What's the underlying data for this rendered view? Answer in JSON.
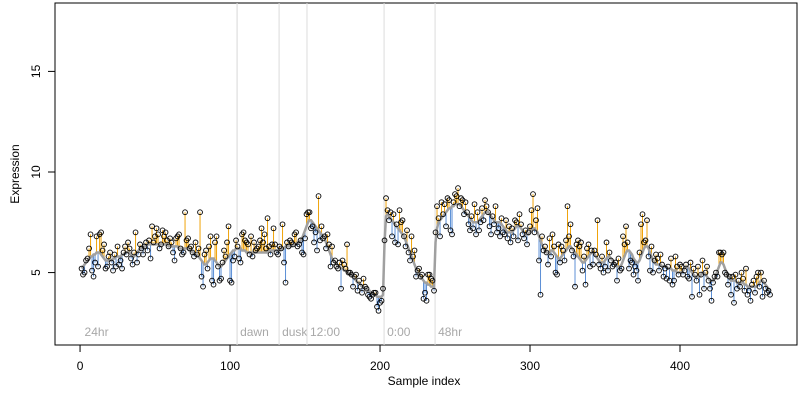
{
  "chart_data": {
    "type": "scatter",
    "xlabel": "Sample index",
    "ylabel": "Expression",
    "xlim": [
      -16.7,
      478
    ],
    "ylim": [
      1.4,
      18.4
    ],
    "xticks": [
      0,
      100,
      200,
      300,
      400
    ],
    "yticks": [
      5,
      10,
      15
    ],
    "colors": {
      "point": "#000000",
      "fit": "#a0a0a0",
      "above": "#f0a30a",
      "below": "#5b8fd6",
      "marker": "#dcdcdc"
    },
    "markers": [
      {
        "x": 1,
        "line": 104.7,
        "label": "24hr"
      },
      {
        "x": 104.7,
        "line": 104.7,
        "label": "dawn"
      },
      {
        "x": 132.7,
        "line": 132.7,
        "label": "dusk"
      },
      {
        "x": 151.3,
        "line": 151.3,
        "label": "12:00"
      },
      {
        "x": 202.7,
        "line": 202.7,
        "label": "0:00"
      },
      {
        "x": 236.7,
        "line": 236.7,
        "label": "48hr"
      }
    ],
    "values": [
      5.2,
      4.9,
      5.0,
      5.6,
      5.7,
      6.2,
      6.9,
      5.1,
      4.8,
      5.5,
      6.8,
      5.3,
      6.9,
      7.0,
      6.1,
      6.4,
      5.2,
      5.3,
      5.8,
      6.0,
      5.5,
      5.1,
      5.9,
      5.3,
      6.3,
      5.4,
      5.6,
      5.2,
      6.0,
      6.3,
      5.9,
      6.5,
      6.2,
      5.7,
      5.4,
      6.0,
      7.0,
      5.5,
      5.9,
      6.4,
      6.2,
      5.9,
      6.3,
      6.5,
      6.1,
      6.6,
      5.7,
      7.3,
      6.5,
      6.8,
      7.2,
      6.9,
      6.2,
      6.4,
      7.1,
      6.8,
      7.0,
      6.6,
      6.3,
      6.7,
      6.5,
      6.0,
      5.6,
      6.7,
      6.8,
      6.9,
      6.2,
      5.9,
      6.0,
      8.0,
      6.6,
      6.7,
      6.2,
      6.3,
      6.0,
      5.8,
      6.5,
      5.9,
      6.2,
      8.0,
      4.8,
      4.3,
      5.9,
      6.1,
      5.2,
      6.3,
      6.8,
      4.6,
      4.4,
      6.5,
      6.8,
      5.3,
      4.6,
      4.7,
      5.5,
      6.1,
      5.8,
      6.5,
      7.3,
      4.6,
      4.5,
      5.6,
      5.8,
      6.6,
      6.3,
      5.7,
      5.5,
      6.9,
      7.0,
      6.6,
      6.5,
      6.4,
      5.9,
      6.8,
      5.8,
      6.5,
      6.1,
      6.2,
      6.3,
      6.6,
      7.2,
      6.5,
      6.9,
      6.2,
      7.7,
      6.3,
      5.9,
      6.4,
      7.2,
      6.4,
      6.0,
      5.9,
      6.3,
      6.2,
      7.4,
      5.5,
      4.5,
      6.5,
      6.3,
      6.6,
      6.5,
      6.4,
      6.9,
      7.0,
      6.3,
      6.4,
      6.6,
      6.0,
      5.9,
      6.7,
      7.9,
      8.0,
      8.0,
      7.2,
      7.3,
      6.5,
      7.0,
      6.1,
      8.8,
      6.6,
      7.3,
      6.7,
      6.8,
      6.2,
      6.9,
      6.4,
      5.3,
      6.3,
      5.5,
      5.6,
      5.3,
      5.2,
      5.5,
      4.2,
      5.6,
      5.4,
      5.2,
      6.4,
      5.0,
      5.0,
      4.9,
      4.3,
      4.8,
      4.9,
      4.1,
      4.6,
      4.3,
      4.0,
      4.7,
      4.3,
      4.2,
      3.9,
      3.8,
      3.7,
      3.9,
      4.0,
      4.0,
      3.3,
      3.1,
      3.5,
      3.6,
      4.2,
      6.6,
      8.7,
      8.1,
      7.6,
      8.0,
      6.8,
      7.9,
      6.5,
      7.4,
      6.4,
      8.1,
      7.5,
      7.6,
      6.8,
      6.3,
      7.1,
      6.0,
      5.6,
      6.8,
      5.8,
      6.1,
      4.8,
      5.1,
      5.2,
      4.8,
      4.9,
      3.7,
      4.0,
      3.6,
      4.9,
      4.9,
      4.7,
      4.6,
      4.1,
      7.0,
      8.3,
      7.7,
      6.8,
      8.5,
      7.9,
      8.4,
      7.3,
      8.7,
      8.6,
      7.1,
      6.9,
      8.5,
      8.9,
      8.8,
      9.2,
      8.3,
      8.7,
      8.6,
      7.9,
      8.5,
      8.0,
      7.4,
      7.1,
      7.8,
      7.2,
      8.4,
      6.9,
      8.0,
      7.1,
      7.5,
      8.2,
      7.6,
      8.6,
      8.3,
      8.0,
      7.3,
      6.9,
      7.8,
      7.4,
      8.3,
      7.0,
      7.2,
      6.8,
      7.7,
      7.0,
      6.9,
      7.6,
      6.7,
      7.3,
      6.5,
      7.2,
      6.8,
      7.6,
      7.5,
      6.6,
      7.9,
      7.4,
      6.9,
      6.7,
      7.1,
      6.4,
      7.0,
      7.3,
      8.1,
      8.9,
      7.0,
      7.6,
      8.2,
      5.6,
      3.9,
      6.8,
      6.1,
      6.3,
      6.0,
      5.4,
      6.7,
      5.8,
      6.9,
      6.3,
      5.0,
      4.9,
      6.4,
      5.5,
      6.3,
      6.1,
      5.6,
      6.6,
      8.3,
      6.8,
      7.4,
      6.1,
      5.8,
      4.3,
      6.4,
      6.6,
      6.3,
      6.5,
      5.1,
      5.8,
      4.4,
      6.2,
      6.4,
      5.3,
      6.1,
      5.4,
      6.1,
      5.9,
      7.6,
      5.4,
      5.2,
      5.8,
      5.0,
      5.3,
      6.5,
      5.1,
      6.0,
      5.6,
      5.3,
      5.4,
      5.5,
      4.6,
      5.7,
      5.1,
      5.2,
      6.8,
      6.4,
      7.3,
      6.5,
      5.2,
      5.6,
      5.5,
      4.9,
      5.3,
      5.1,
      4.6,
      6.0,
      7.4,
      7.9,
      6.5,
      6.6,
      7.6,
      5.8,
      5.1,
      6.3,
      5.0,
      5.6,
      5.9,
      5.7,
      5.1,
      5.9,
      5.4,
      4.8,
      5.2,
      4.7,
      5.3,
      4.6,
      5.7,
      4.4,
      4.6,
      5.8,
      5.3,
      4.9,
      5.4,
      5.3,
      4.9,
      5.1,
      5.4,
      4.8,
      4.7,
      5.5,
      3.8,
      5.2,
      4.9,
      4.6,
      5.3,
      3.9,
      4.9,
      5.6,
      4.2,
      5.0,
      5.3,
      4.6,
      4.2,
      3.6,
      4.5,
      4.8,
      5.0,
      4.8,
      6.0,
      6.0,
      5.9,
      6.0,
      5.0,
      4.9,
      4.4,
      4.8,
      3.9,
      4.8,
      3.5,
      4.9,
      4.2,
      4.6,
      4.3,
      5.0,
      4.7,
      4.1,
      5.2,
      3.9,
      4.1,
      3.6,
      4.4,
      4.6,
      4.0,
      4.8,
      5.0,
      4.3,
      5.0,
      3.8,
      4.6,
      4.2,
      4.0,
      4.1,
      3.9
    ],
    "fit": [
      5.2,
      5.3,
      5.4,
      5.5,
      5.6,
      5.7,
      5.8,
      5.8,
      5.9,
      5.9,
      6.0,
      6.0,
      6.0,
      5.9,
      5.8,
      5.7,
      5.6,
      5.6,
      5.6,
      5.6,
      5.6,
      5.7,
      5.7,
      5.8,
      5.8,
      5.8,
      5.8,
      5.9,
      5.9,
      6.0,
      6.0,
      6.0,
      6.0,
      5.9,
      5.8,
      5.8,
      5.9,
      6.0,
      6.1,
      6.2,
      6.2,
      6.3,
      6.3,
      6.3,
      6.4,
      6.4,
      6.4,
      6.4,
      6.4,
      6.4,
      6.4,
      6.4,
      6.4,
      6.4,
      6.4,
      6.4,
      6.4,
      6.4,
      6.3,
      6.3,
      6.3,
      6.3,
      6.3,
      6.3,
      6.3,
      6.2,
      6.2,
      6.2,
      6.2,
      6.2,
      6.2,
      6.2,
      6.1,
      6.1,
      6.0,
      6.0,
      5.9,
      5.9,
      5.8,
      5.7,
      5.6,
      5.5,
      5.4,
      5.4,
      5.5,
      5.6,
      5.7,
      5.7,
      5.7,
      5.6,
      5.5,
      5.4,
      5.3,
      5.3,
      5.4,
      5.5,
      5.6,
      5.7,
      5.8,
      5.9,
      6.0,
      6.1,
      6.1,
      6.2,
      6.2,
      6.2,
      6.2,
      6.1,
      6.1,
      6.1,
      6.0,
      6.0,
      6.0,
      6.0,
      6.0,
      6.0,
      6.0,
      6.0,
      6.0,
      6.0,
      6.0,
      6.0,
      6.0,
      6.0,
      6.0,
      6.1,
      6.1,
      6.1,
      6.1,
      6.1,
      6.1,
      6.1,
      6.1,
      6.2,
      6.2,
      6.2,
      6.3,
      6.3,
      6.3,
      6.3,
      6.3,
      6.4,
      6.4,
      6.4,
      6.5,
      6.5,
      6.6,
      6.7,
      6.9,
      7.1,
      7.3,
      7.5,
      7.6,
      7.6,
      7.5,
      7.4,
      7.3,
      7.2,
      7.1,
      7.0,
      6.9,
      6.8,
      6.7,
      6.5,
      6.3,
      6.1,
      5.9,
      5.7,
      5.6,
      5.5,
      5.4,
      5.3,
      5.3,
      5.2,
      5.2,
      5.1,
      5.1,
      5.0,
      5.0,
      4.9,
      4.9,
      4.8,
      4.7,
      4.6,
      4.5,
      4.5,
      4.4,
      4.3,
      4.3,
      4.2,
      4.2,
      4.1,
      4.1,
      4.0,
      4.0,
      3.9,
      3.9,
      3.8,
      3.8,
      3.8,
      3.8,
      3.9,
      6.5,
      7.8,
      7.9,
      7.8,
      7.7,
      7.6,
      7.5,
      7.4,
      7.3,
      7.2,
      7.1,
      7.0,
      6.9,
      6.8,
      6.6,
      6.4,
      6.2,
      6.0,
      5.8,
      5.6,
      5.4,
      5.2,
      5.0,
      4.9,
      4.8,
      4.7,
      4.6,
      4.5,
      4.5,
      4.4,
      4.4,
      4.3,
      4.3,
      4.3,
      6.5,
      7.2,
      7.5,
      7.6,
      7.7,
      7.8,
      7.9,
      8.0,
      8.1,
      8.2,
      8.2,
      8.3,
      8.3,
      8.4,
      8.4,
      8.4,
      8.4,
      8.3,
      8.2,
      8.1,
      8.0,
      7.9,
      7.8,
      7.7,
      7.6,
      7.5,
      7.5,
      7.5,
      7.5,
      7.6,
      7.7,
      7.8,
      7.9,
      8.0,
      8.0,
      8.0,
      7.9,
      7.8,
      7.7,
      7.6,
      7.5,
      7.5,
      7.5,
      7.5,
      7.4,
      7.3,
      7.2,
      7.1,
      7.0,
      7.0,
      7.0,
      7.0,
      7.1,
      7.2,
      7.3,
      7.3,
      7.3,
      7.2,
      7.1,
      7.0,
      6.9,
      6.9,
      6.9,
      7.0,
      7.1,
      7.2,
      7.2,
      7.1,
      7.0,
      6.8,
      6.6,
      6.4,
      6.2,
      6.1,
      6.0,
      6.0,
      6.0,
      6.1,
      6.1,
      6.0,
      5.9,
      5.8,
      5.7,
      5.7,
      5.8,
      5.9,
      6.0,
      6.1,
      6.2,
      6.3,
      6.3,
      6.2,
      6.1,
      6.0,
      5.9,
      5.8,
      5.7,
      5.6,
      5.5,
      5.5,
      5.6,
      5.7,
      5.8,
      5.9,
      6.0,
      6.0,
      5.9,
      5.8,
      5.7,
      5.6,
      5.5,
      5.5,
      5.5,
      5.6,
      5.7,
      5.8,
      5.8,
      5.7,
      5.6,
      5.5,
      5.4,
      5.3,
      5.3,
      5.3,
      5.4,
      5.6,
      5.8,
      6.0,
      6.1,
      6.1,
      6.0,
      5.9,
      5.7,
      5.6,
      5.5,
      5.5,
      5.6,
      5.8,
      6.0,
      6.2,
      6.3,
      6.3,
      6.2,
      6.0,
      5.8,
      5.6,
      5.5,
      5.4,
      5.4,
      5.4,
      5.4,
      5.3,
      5.3,
      5.3,
      5.3,
      5.2,
      5.2,
      5.2,
      5.1,
      5.1,
      5.1,
      5.0,
      5.0,
      5.0,
      5.0,
      5.1,
      5.2,
      5.3,
      5.3,
      5.2,
      5.1,
      5.0,
      4.9,
      4.8,
      4.8,
      4.8,
      4.8,
      4.9,
      5.0,
      5.0,
      4.9,
      4.8,
      4.7,
      4.6,
      4.6,
      4.6,
      4.7,
      4.9,
      5.1,
      5.3,
      5.5,
      5.5,
      5.4,
      5.2,
      5.0,
      4.8,
      4.7,
      4.6,
      4.6,
      4.6,
      4.6,
      4.5,
      4.5,
      4.5,
      4.5,
      4.5,
      4.4,
      4.4,
      4.3,
      4.3,
      4.3,
      4.3,
      4.3,
      4.3,
      4.3,
      4.4,
      4.5,
      4.6,
      4.6,
      4.5,
      4.4,
      4.3,
      4.2,
      4.1
    ]
  }
}
